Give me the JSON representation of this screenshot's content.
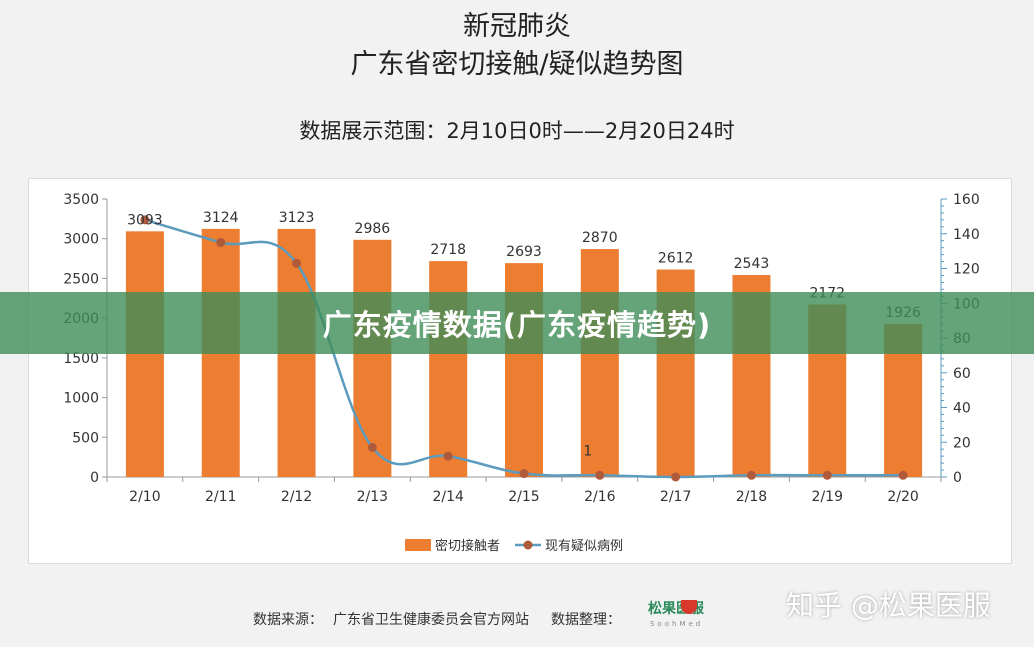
{
  "header": {
    "title_line1": "新冠肺炎",
    "title_line2": "广东省密切接触/疑似趋势图",
    "range_text": "数据展示范围：2月10日0时——2月20日24时"
  },
  "chart_data": {
    "type": "bar",
    "categories": [
      "2/10",
      "2/11",
      "2/12",
      "2/13",
      "2/14",
      "2/15",
      "2/16",
      "2/17",
      "2/18",
      "2/19",
      "2/20"
    ],
    "series": [
      {
        "name": "密切接触者",
        "type": "bar",
        "axis": "left",
        "color": "#ed7d31",
        "values": [
          3093,
          3124,
          3123,
          2986,
          2718,
          2693,
          2870,
          2612,
          2543,
          2172,
          1926
        ]
      },
      {
        "name": "现有疑似病例",
        "type": "line",
        "axis": "right",
        "color": "#5b9bbd",
        "marker_color": "#b05a3c",
        "values": [
          148,
          135,
          123,
          17,
          12,
          2,
          1,
          0,
          1,
          1,
          1
        ]
      }
    ],
    "y_left": {
      "min": 0,
      "max": 3500,
      "ticks": [
        "0",
        "500",
        "1000",
        "1500",
        "2000",
        "2500",
        "3000",
        "3500"
      ]
    },
    "y_right": {
      "min": 0,
      "max": 160,
      "ticks": [
        "0",
        "20",
        "40",
        "60",
        "80",
        "100",
        "120",
        "140",
        "160"
      ]
    },
    "line_labels": [
      {
        "index": 6,
        "text": "1"
      }
    ],
    "legend": {
      "position": "bottom"
    }
  },
  "banner": {
    "text": "广东疫情数据(广东疫情趋势)"
  },
  "footer": {
    "source": "数据来源：",
    "org": "广东省卫生健康委员会官方网站",
    "arranged": "数据整理：",
    "logo_text": "松果医服",
    "logo_sub": "SoohMed"
  },
  "watermark": {
    "text": "知乎 @松果医服"
  }
}
